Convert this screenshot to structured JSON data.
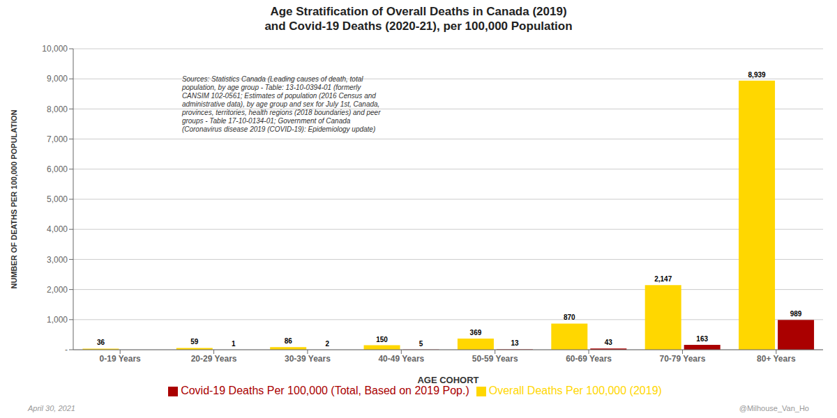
{
  "chart_data": {
    "type": "bar",
    "title": "Age Stratification of Overall Deaths in Canada (2019)\nand Covid-19 Deaths (2020-21), per 100,000 Population",
    "xlabel": "AGE COHORT",
    "ylabel": "NUMBER OF DEATHS PER 100,000 POPULATION",
    "categories": [
      "0-19 Years",
      "20-29 Years",
      "30-39 Years",
      "40-49 Years",
      "50-59 Years",
      "60-69 Years",
      "70-79 Years",
      "80+ Years"
    ],
    "series": [
      {
        "name": "Overall Deaths Per 100,000 (2019)",
        "color": "#FFD700",
        "values": [
          36,
          59,
          86,
          150,
          369,
          870,
          2147,
          8939
        ],
        "value_labels": [
          "36",
          "59",
          "86",
          "150",
          "369",
          "870",
          "2,147",
          "8,939"
        ]
      },
      {
        "name": "Covid-19 Deaths Per 100,000 (Total, Based on 2019 Pop.)",
        "color": "#AA0000",
        "values": [
          0,
          1,
          2,
          5,
          13,
          43,
          163,
          989
        ]
      }
    ],
    "ylim": [
      0,
      10000
    ],
    "yticks": [
      {
        "value": 0,
        "label": "-"
      },
      {
        "value": 1000,
        "label": "1,000"
      },
      {
        "value": 2000,
        "label": "2,000"
      },
      {
        "value": 3000,
        "label": "3,000"
      },
      {
        "value": 4000,
        "label": "4,000"
      },
      {
        "value": 5000,
        "label": "5,000"
      },
      {
        "value": 6000,
        "label": "6,000"
      },
      {
        "value": 7000,
        "label": "7,000"
      },
      {
        "value": 8000,
        "label": "8,000"
      },
      {
        "value": 9000,
        "label": "9,000"
      },
      {
        "value": 10000,
        "label": "10,000"
      }
    ],
    "grid": true,
    "legend": "bottom",
    "data_labels": true,
    "annotations": [
      "Sources: Statistics Canada (Leading causes of death, total\npopulation, by age group - Table: 13-10-0394-01 (formerly\nCANSIM 102-0561; Estimates of population (2016 Census and\nadministrative data), by age group and sex for July 1st, Canada,\nprovinces, territories, health regions (2018 boundaries) and peer\ngroups - Table 17-10-0134-01; Government of Canada\n(Coronavirus disease 2019 (COVID-19): Epidemiology update)",
      "April 30, 2021",
      "@Milhouse_Van_Ho"
    ]
  }
}
